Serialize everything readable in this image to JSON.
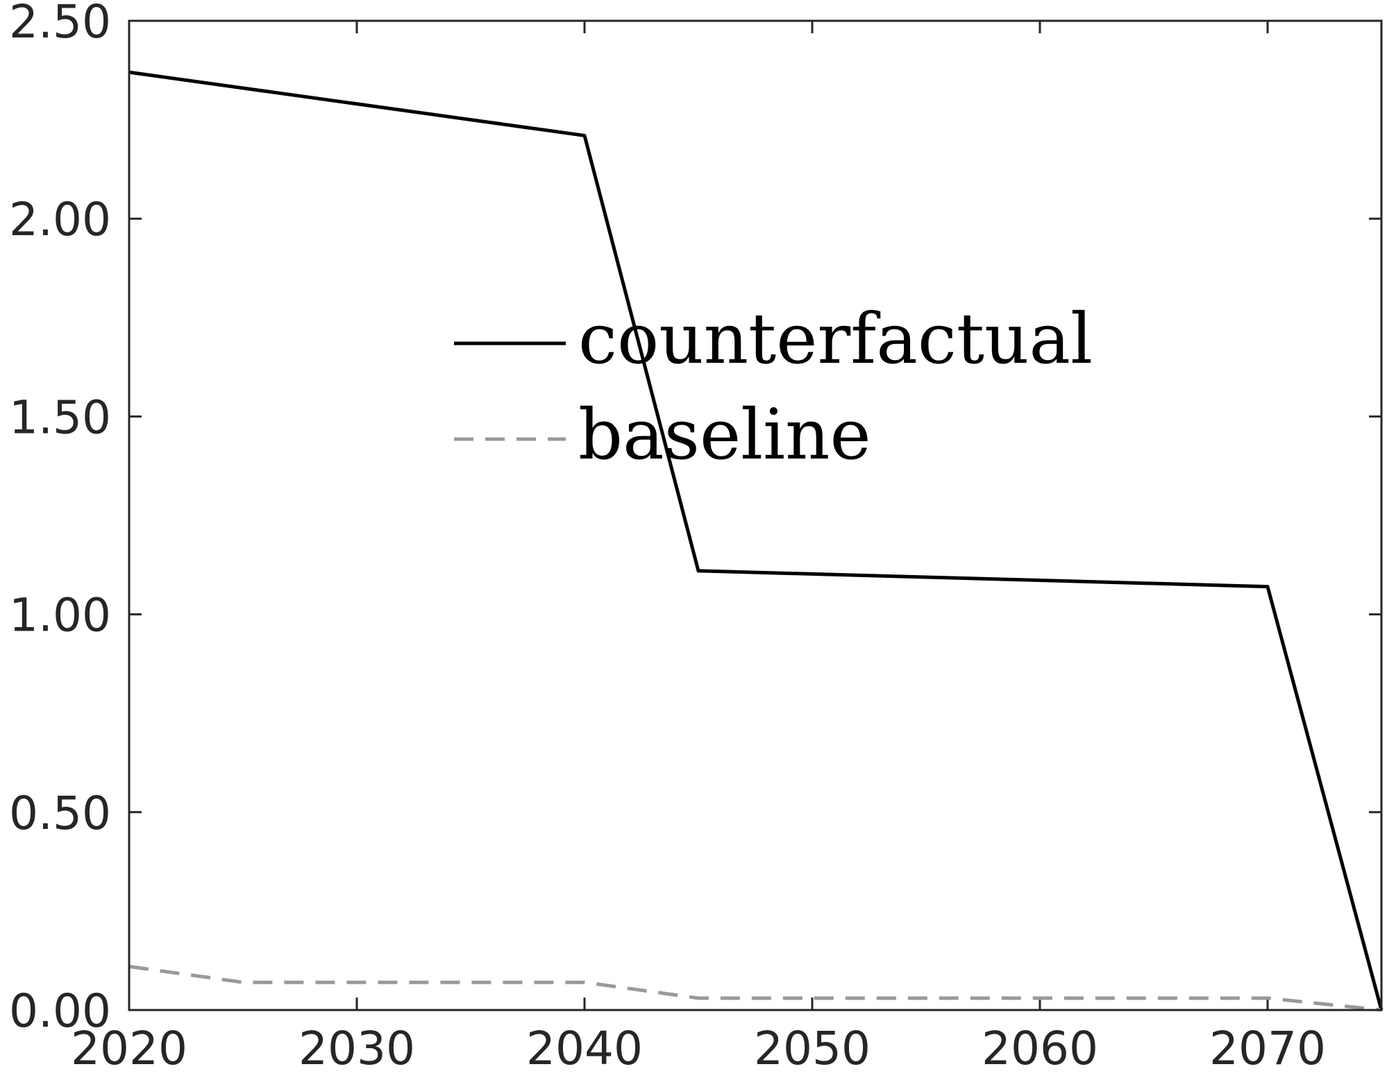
{
  "chart_data": {
    "type": "line",
    "title": "",
    "xlabel": "",
    "ylabel": "",
    "xlim": [
      2020,
      2075
    ],
    "ylim": [
      0,
      2.5
    ],
    "x_ticks": [
      2020,
      2030,
      2040,
      2050,
      2060,
      2070
    ],
    "x_tick_labels": [
      "2020",
      "2030",
      "2040",
      "2050",
      "2060",
      "2070"
    ],
    "y_ticks": [
      0,
      0.5,
      1.0,
      1.5,
      2.0,
      2.5
    ],
    "y_tick_labels": [
      "0.00",
      "0.50",
      "1.00",
      "1.50",
      "2.00",
      "2.50"
    ],
    "grid": false,
    "legend_position": "center",
    "series": [
      {
        "name": "counterfactual",
        "style": "solid",
        "color": "#000000",
        "x": [
          2020,
          2040,
          2045,
          2070,
          2075
        ],
        "y": [
          2.37,
          2.21,
          1.11,
          1.07,
          0.0
        ]
      },
      {
        "name": "baseline",
        "style": "dashed",
        "color": "#999999",
        "x": [
          2020,
          2025,
          2040,
          2045,
          2070,
          2075
        ],
        "y": [
          0.11,
          0.07,
          0.07,
          0.03,
          0.03,
          0.0
        ]
      }
    ]
  }
}
